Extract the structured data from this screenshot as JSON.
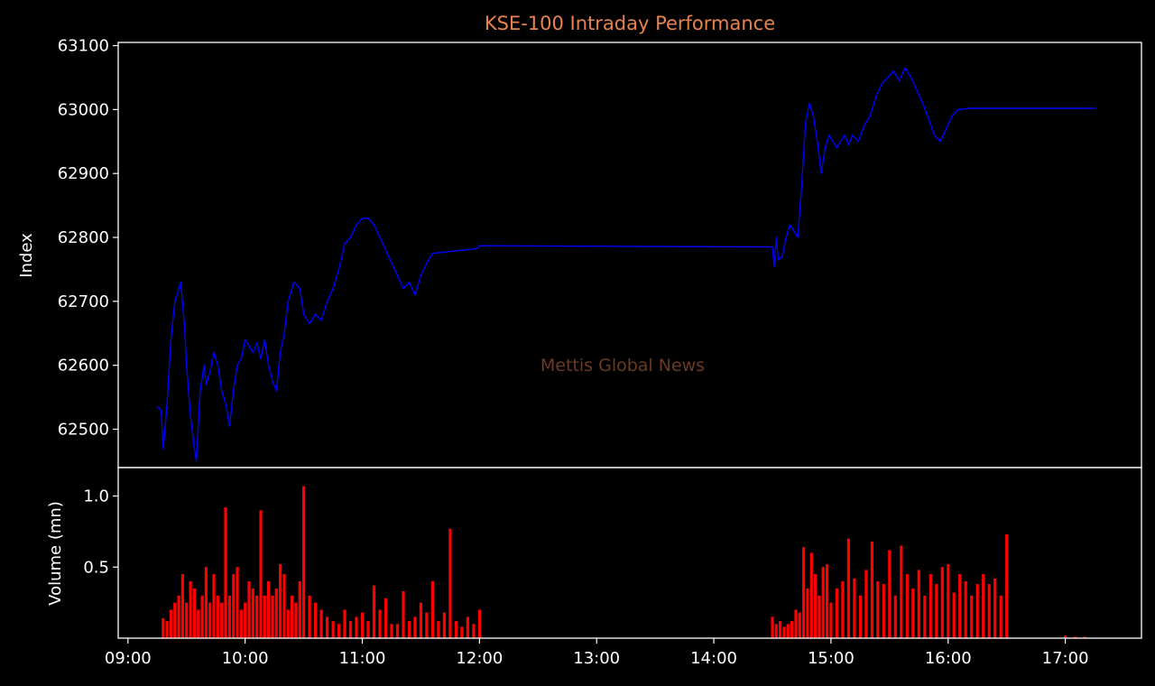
{
  "chart_data": {
    "type": "line",
    "title": "KSE-100 Intraday Performance",
    "watermark": "Mettis Global News",
    "colors": {
      "background": "#000000",
      "axes": "#ffffff",
      "title": "#e8834f",
      "watermark": "#6b3a22",
      "index_line": "#0000ff",
      "volume_bars": "#ff0000"
    },
    "x_axis": {
      "ticks": [
        "09:00",
        "10:00",
        "11:00",
        "12:00",
        "13:00",
        "14:00",
        "15:00",
        "16:00",
        "17:00"
      ],
      "range": [
        "08:55",
        "17:39"
      ]
    },
    "index_panel": {
      "ylabel": "Index",
      "ylim": [
        62440,
        63105
      ],
      "yticks": [
        "62500",
        "62600",
        "62700",
        "62800",
        "62900",
        "63000",
        "63100"
      ],
      "series": [
        {
          "x": [
            "09:15",
            "09:17",
            "09:18",
            "09:19",
            "09:20",
            "09:22",
            "09:24",
            "09:27",
            "09:29",
            "09:30",
            "09:32",
            "09:34",
            "09:35",
            "09:37",
            "09:39",
            "09:40",
            "09:42",
            "09:44",
            "09:46",
            "09:48",
            "09:50",
            "09:52",
            "09:54",
            "09:56",
            "09:58",
            "10:00",
            "10:02",
            "10:04",
            "10:06",
            "10:08",
            "10:10",
            "10:12",
            "10:14",
            "10:16",
            "10:18",
            "10:20",
            "10:22",
            "10:25",
            "10:28",
            "10:30",
            "10:33",
            "10:36",
            "10:39",
            "10:42",
            "10:45",
            "10:48",
            "10:51",
            "10:54",
            "10:57",
            "11:00",
            "11:03",
            "11:06",
            "11:09",
            "11:12",
            "11:15",
            "11:18",
            "11:21",
            "11:24",
            "11:27",
            "11:30",
            "11:33",
            "11:36",
            "11:39",
            "11:42",
            "11:45",
            "11:48",
            "11:51",
            "11:54",
            "11:57",
            "11:59",
            "12:00",
            "14:30",
            "14:31",
            "14:32",
            "14:33",
            "14:35",
            "14:37",
            "14:39",
            "14:41",
            "14:43",
            "14:45",
            "14:47",
            "14:49",
            "14:51",
            "14:53",
            "14:55",
            "14:57",
            "14:59",
            "15:01",
            "15:03",
            "15:05",
            "15:07",
            "15:09",
            "15:11",
            "15:14",
            "15:17",
            "15:20",
            "15:23",
            "15:26",
            "15:29",
            "15:32",
            "15:35",
            "15:38",
            "15:41",
            "15:44",
            "15:47",
            "15:50",
            "15:53",
            "15:56",
            "15:59",
            "16:02",
            "16:05",
            "16:08",
            "16:11",
            "16:14",
            "16:17",
            "16:20",
            "16:23",
            "16:26",
            "16:29",
            "16:30",
            "16:31",
            "17:00",
            "17:15"
          ],
          "values": [
            62535,
            62530,
            62470,
            62500,
            62540,
            62640,
            62700,
            62730,
            62660,
            62600,
            62520,
            62470,
            62450,
            62560,
            62600,
            62570,
            62590,
            62620,
            62600,
            62560,
            62540,
            62505,
            62560,
            62600,
            62610,
            62640,
            62630,
            62620,
            62635,
            62610,
            62640,
            62600,
            62575,
            62560,
            62620,
            62650,
            62700,
            62730,
            62720,
            62680,
            62665,
            62680,
            62670,
            62700,
            62720,
            62750,
            62790,
            62800,
            62820,
            62830,
            62830,
            62820,
            62800,
            62780,
            62760,
            62740,
            62720,
            62730,
            62710,
            62740,
            62760,
            62775,
            62776,
            62777,
            62778,
            62779,
            62780,
            62781,
            62782,
            62783,
            62787,
            62785,
            62755,
            62800,
            62765,
            62770,
            62800,
            62820,
            62810,
            62800,
            62880,
            62980,
            63010,
            62990,
            62950,
            62900,
            62940,
            62960,
            62950,
            62940,
            62950,
            62960,
            62945,
            62960,
            62950,
            62975,
            62990,
            63020,
            63040,
            63050,
            63060,
            63045,
            63065,
            63050,
            63030,
            63010,
            62985,
            62960,
            62950,
            62970,
            62990,
            63000,
            63001,
            63002,
            63002,
            63002,
            63002,
            63002,
            63002,
            63002,
            63002,
            63002,
            63002,
            63002
          ]
        }
      ]
    },
    "volume_panel": {
      "ylabel": "Volume (mn)",
      "ylim": [
        0,
        1.2
      ],
      "yticks": [
        "0.5",
        "1.0"
      ],
      "x": [
        "09:18",
        "09:20",
        "09:22",
        "09:24",
        "09:26",
        "09:28",
        "09:30",
        "09:32",
        "09:34",
        "09:36",
        "09:38",
        "09:40",
        "09:42",
        "09:44",
        "09:46",
        "09:48",
        "09:50",
        "09:52",
        "09:54",
        "09:56",
        "09:58",
        "10:00",
        "10:02",
        "10:04",
        "10:06",
        "10:08",
        "10:10",
        "10:12",
        "10:14",
        "10:16",
        "10:18",
        "10:20",
        "10:22",
        "10:24",
        "10:26",
        "10:28",
        "10:30",
        "10:33",
        "10:36",
        "10:39",
        "10:42",
        "10:45",
        "10:48",
        "10:51",
        "10:54",
        "10:57",
        "11:00",
        "11:03",
        "11:06",
        "11:09",
        "11:12",
        "11:15",
        "11:18",
        "11:21",
        "11:24",
        "11:27",
        "11:30",
        "11:33",
        "11:36",
        "11:39",
        "11:42",
        "11:45",
        "11:48",
        "11:51",
        "11:54",
        "11:57",
        "12:00",
        "14:30",
        "14:32",
        "14:34",
        "14:36",
        "14:38",
        "14:40",
        "14:42",
        "14:44",
        "14:46",
        "14:48",
        "14:50",
        "14:52",
        "14:54",
        "14:56",
        "14:58",
        "15:00",
        "15:03",
        "15:06",
        "15:09",
        "15:12",
        "15:15",
        "15:18",
        "15:21",
        "15:24",
        "15:27",
        "15:30",
        "15:33",
        "15:36",
        "15:39",
        "15:42",
        "15:45",
        "15:48",
        "15:51",
        "15:54",
        "15:57",
        "16:00",
        "16:03",
        "16:06",
        "16:09",
        "16:12",
        "16:15",
        "16:18",
        "16:21",
        "16:24",
        "16:27",
        "16:30",
        "17:00",
        "17:05",
        "17:10"
      ],
      "values": [
        0.14,
        0.12,
        0.2,
        0.25,
        0.3,
        0.45,
        0.25,
        0.4,
        0.35,
        0.2,
        0.3,
        0.5,
        0.25,
        0.45,
        0.3,
        0.25,
        0.92,
        0.3,
        0.45,
        0.5,
        0.2,
        0.25,
        0.4,
        0.35,
        0.3,
        0.9,
        0.3,
        0.4,
        0.3,
        0.35,
        0.52,
        0.45,
        0.2,
        0.3,
        0.25,
        0.4,
        1.07,
        0.3,
        0.25,
        0.2,
        0.15,
        0.12,
        0.1,
        0.2,
        0.12,
        0.15,
        0.18,
        0.12,
        0.37,
        0.2,
        0.28,
        0.1,
        0.1,
        0.33,
        0.12,
        0.15,
        0.25,
        0.18,
        0.4,
        0.12,
        0.18,
        0.77,
        0.12,
        0.08,
        0.15,
        0.1,
        0.2,
        0.15,
        0.1,
        0.12,
        0.08,
        0.1,
        0.12,
        0.2,
        0.18,
        0.64,
        0.35,
        0.6,
        0.45,
        0.3,
        0.5,
        0.52,
        0.25,
        0.35,
        0.4,
        0.7,
        0.42,
        0.3,
        0.48,
        0.68,
        0.4,
        0.38,
        0.62,
        0.3,
        0.65,
        0.45,
        0.35,
        0.48,
        0.3,
        0.45,
        0.38,
        0.5,
        0.52,
        0.32,
        0.45,
        0.4,
        0.3,
        0.38,
        0.45,
        0.38,
        0.42,
        0.3,
        0.73,
        0.02,
        0.01,
        0.01
      ]
    }
  }
}
